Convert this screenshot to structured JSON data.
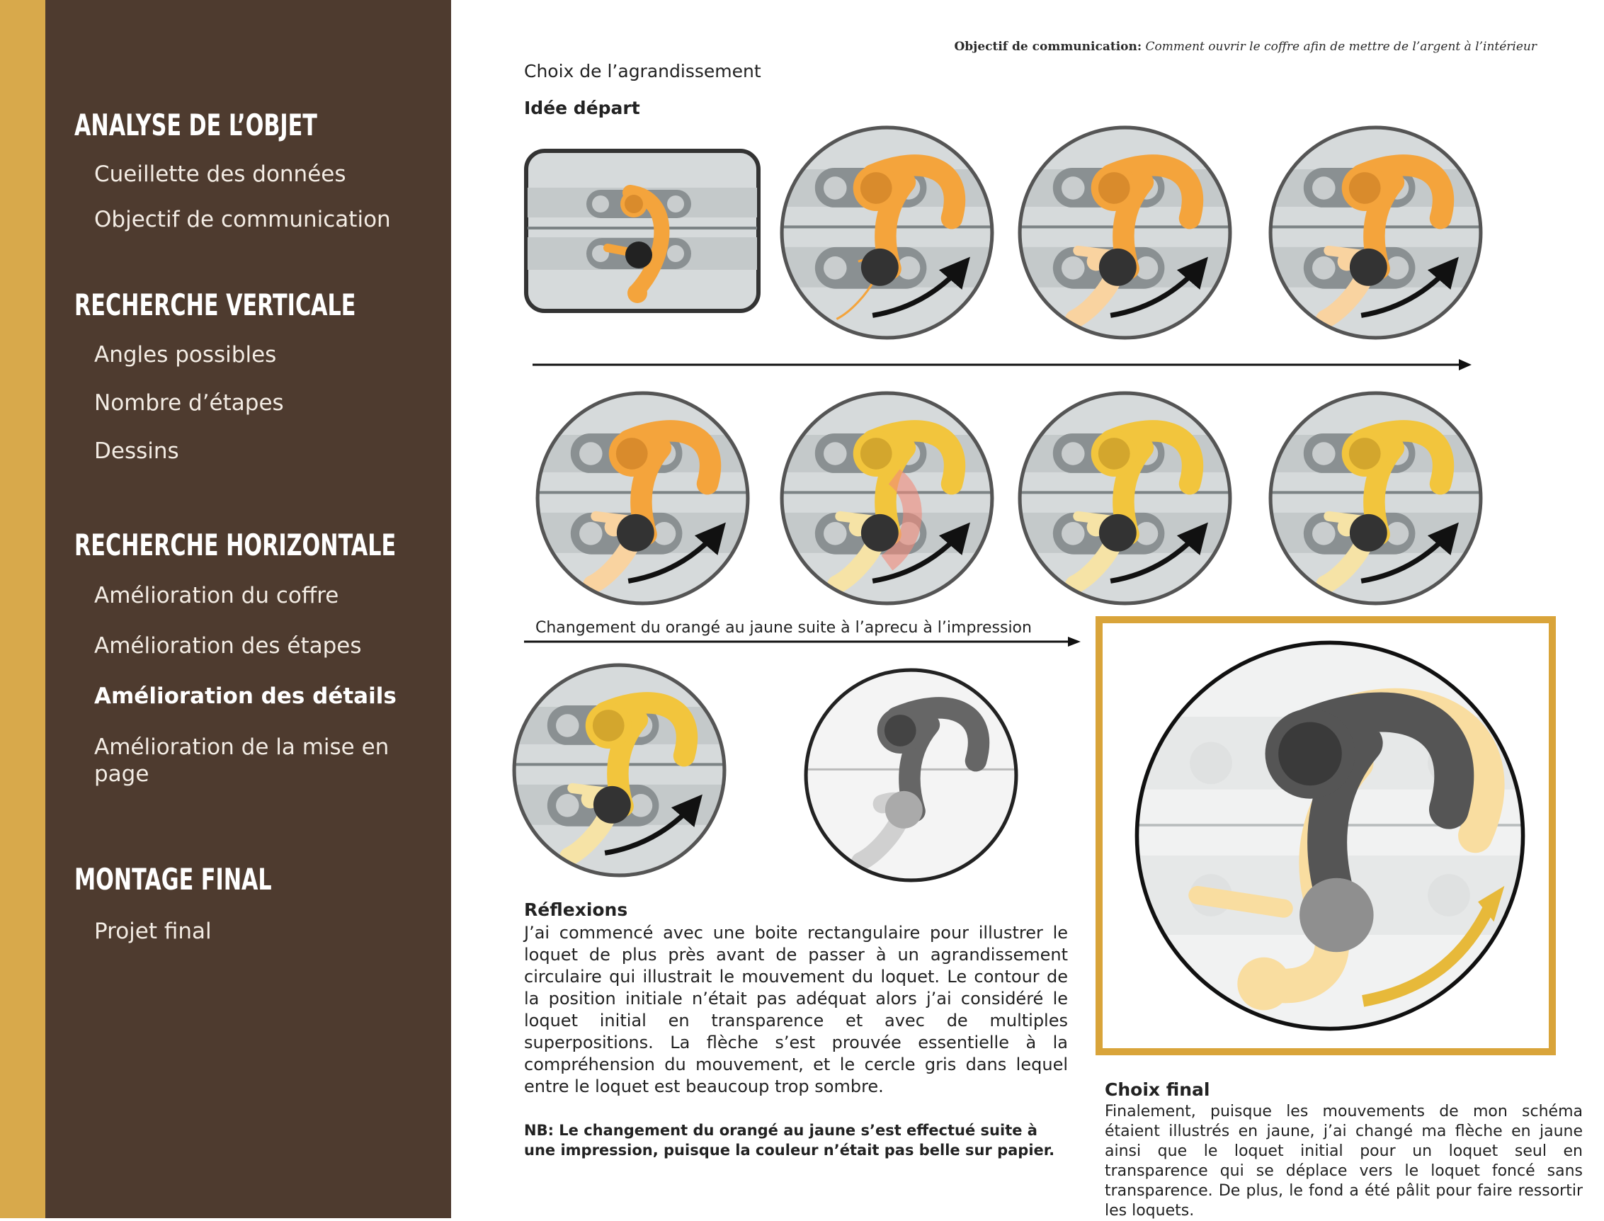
{
  "sidebar": {
    "sections": [
      {
        "title": "ANALYSE DE L’OBJET",
        "items": [
          "Cueillette des données",
          "Objectif de communication"
        ]
      },
      {
        "title": "RECHERCHE VERTICALE",
        "items": [
          "Angles possibles",
          "Nombre d’étapes",
          "Dessins"
        ]
      },
      {
        "title": "RECHERCHE HORIZONTALE",
        "items": [
          "Amélioration du coffre",
          "Amélioration des étapes",
          "Amélioration des détails",
          "Amélioration de la mise en page"
        ]
      },
      {
        "title": "MONTAGE FINAL",
        "items": [
          "Projet final"
        ]
      }
    ],
    "active_item": "Amélioration des détails"
  },
  "header": {
    "objectif_label": "Objectif de communication:",
    "objectif_text": "Comment ouvrir le coffre afin de mettre de l’argent à l’intérieur"
  },
  "main": {
    "choix_label": "Choix de l’agrandissement",
    "idee_label": "Idée départ",
    "changement_label": "Changement du orangé au jaune suite à l’aprecu à l’impression",
    "reflexions_title": "Réflexions",
    "reflexions_text": "J’ai commencé avec une boite rectangulaire pour illustrer le loquet de plus près avant de passer à un agrandissement circulaire qui illustrait le mouvement du loquet. Le contour de la position initiale n’était pas adéquat alors j’ai considéré le loquet initial en transparence et avec de multiples superpositions.  La flèche s’est prouvée essentielle à la compréhension du mouvement, et le cercle gris dans lequel entre le loquet est beaucoup trop sombre.",
    "nb_text": "NB: Le changement du orangé au jaune s’est effectué suite à une impression, puisque la couleur n’était pas belle sur papier.",
    "choix_final_title": "Choix final",
    "choix_final_text": "Finalement, puisque les mouvements de mon schéma étaient illustrés en jaune, j’ai changé ma flèche en jaune ainsi que le loquet initial pour un loquet seul en transparence qui se déplace vers le loquet foncé sans transparence. De plus, le fond a été pâlit pour faire ressortir les loquets."
  },
  "colors": {
    "sidebar": "#4e3b2f",
    "gold": "#d8a94b",
    "orange": "#f4a43c",
    "yellow": "#f2c53d",
    "dark": "#333333"
  }
}
